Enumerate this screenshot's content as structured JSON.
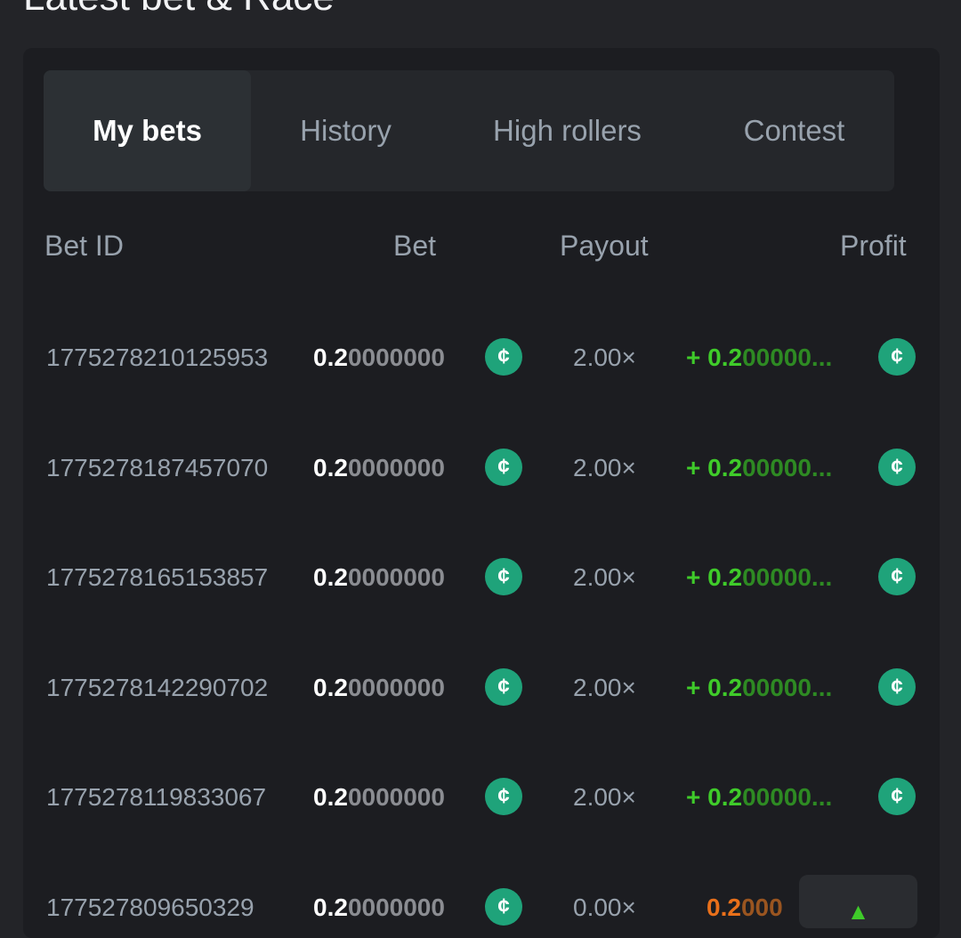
{
  "title": "Latest bet & Race",
  "tabs": [
    {
      "label": "My bets",
      "active": true
    },
    {
      "label": "History"
    },
    {
      "label": "High rollers"
    },
    {
      "label": "Contest"
    }
  ],
  "columns": {
    "id": "Bet ID",
    "bet": "Bet",
    "payout": "Payout",
    "profit": "Profit"
  },
  "colors": {
    "win": "#3fcb2a",
    "loss": "#e9701a",
    "coin": "#1fa37a"
  },
  "coin_icon": "bc-coin-icon",
  "rows": [
    {
      "id": "1775278210125953",
      "bet_main": "0.2",
      "bet_rest": "0000000",
      "payout": "2.00×",
      "profit_main": "+ 0.2",
      "profit_rest": "00000...",
      "win": true
    },
    {
      "id": "1775278187457070",
      "bet_main": "0.2",
      "bet_rest": "0000000",
      "payout": "2.00×",
      "profit_main": "+ 0.2",
      "profit_rest": "00000...",
      "win": true
    },
    {
      "id": "1775278165153857",
      "bet_main": "0.2",
      "bet_rest": "0000000",
      "payout": "2.00×",
      "profit_main": "+ 0.2",
      "profit_rest": "00000...",
      "win": true
    },
    {
      "id": "1775278142290702",
      "bet_main": "0.2",
      "bet_rest": "0000000",
      "payout": "2.00×",
      "profit_main": "+ 0.2",
      "profit_rest": "00000...",
      "win": true
    },
    {
      "id": "1775278119833067",
      "bet_main": "0.2",
      "bet_rest": "0000000",
      "payout": "2.00×",
      "profit_main": "+ 0.2",
      "profit_rest": "00000...",
      "win": true
    },
    {
      "id": "177527809650329",
      "bet_main": "0.2",
      "bet_rest": "0000000",
      "payout": "0.00×",
      "profit_main": "0.2",
      "profit_rest": "000",
      "win": false
    }
  ],
  "scroll_top_icon": "chevron-up-icon"
}
